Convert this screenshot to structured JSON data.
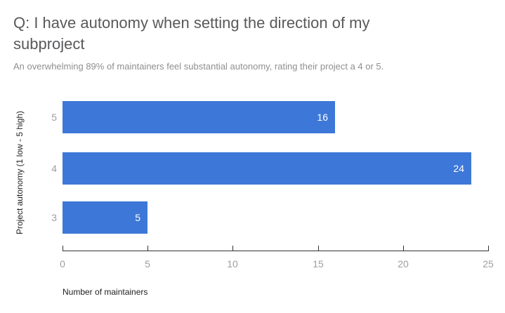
{
  "header": {
    "title": "Q: I have autonomy when setting the direction of my subproject",
    "subtitle": "An overwhelming 89% of maintainers feel substantial autonomy, rating their project a 4 or 5."
  },
  "chart_data": {
    "type": "bar",
    "orientation": "horizontal",
    "title": "Q: I have autonomy when setting the direction of my subproject",
    "subtitle": "An overwhelming 89% of maintainers feel substantial autonomy, rating their project a 4 or 5.",
    "categories": [
      "5",
      "4",
      "3"
    ],
    "values": [
      16,
      24,
      5
    ],
    "xlabel": "Number of maintainers",
    "ylabel": "Project autonomy (1 low - 5 high)",
    "xlim": [
      0,
      25
    ],
    "x_ticks": [
      0,
      5,
      10,
      15,
      20,
      25
    ],
    "grid": false,
    "legend": "none",
    "value_labels_position": "inside-end",
    "colors": {
      "bar": "#3d78d8",
      "value_label": "#ffffff",
      "axis_line": "#333333",
      "tick_label": "#9e9e9e",
      "title": "#58595b",
      "subtitle": "#8f8f8f",
      "axis_title": "#222222"
    }
  }
}
